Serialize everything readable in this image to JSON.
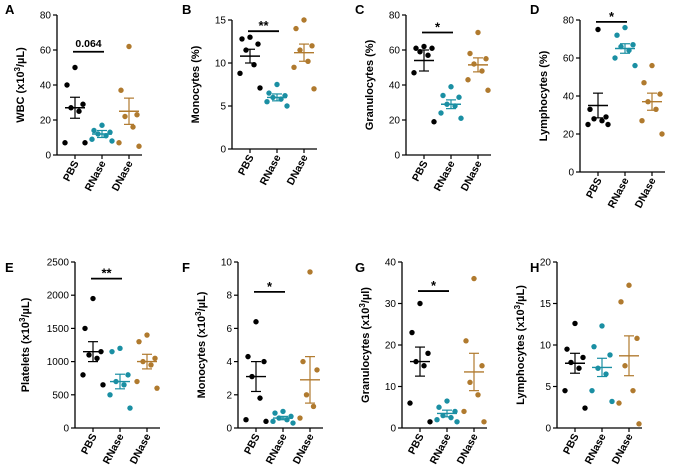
{
  "colors": {
    "PBS": "#000000",
    "RNase": "#1a8fa3",
    "DNase": "#b07a2e",
    "axis": "#000000"
  },
  "chart_data": [
    {
      "panel": "A",
      "type": "scatter",
      "ylabel_main": "WBC (x10",
      "ylabel_sup": "3",
      "ylabel_end": "/µL)",
      "categories": [
        "PBS",
        "RNase",
        "DNase"
      ],
      "ylim": [
        0,
        80
      ],
      "yticks": [
        0,
        20,
        40,
        60,
        80
      ],
      "series": [
        {
          "name": "PBS",
          "values": [
            50,
            40,
            29,
            27,
            25,
            7,
            7
          ],
          "mean": 27,
          "sem": 6
        },
        {
          "name": "RNase",
          "values": [
            17,
            14,
            13,
            12,
            11,
            9,
            8
          ],
          "mean": 12,
          "sem": 2
        },
        {
          "name": "DNase",
          "values": [
            62,
            37,
            23,
            22,
            16,
            7,
            5
          ],
          "mean": 25,
          "sem": 7.5
        }
      ],
      "significance": {
        "text": "0.064",
        "from": 0,
        "to": 1,
        "y": 59
      }
    },
    {
      "panel": "B",
      "type": "scatter",
      "ylabel_main": "Monocytes (%)",
      "categories": [
        "PBS",
        "RNase",
        "DNase"
      ],
      "ylim": [
        0,
        15
      ],
      "yticks": [
        0,
        5,
        10,
        15
      ],
      "series": [
        {
          "name": "PBS",
          "values": [
            13,
            12.8,
            12.2,
            11.5,
            9.8,
            8.8,
            7.1
          ],
          "mean": 10.8,
          "sem": 0.8
        },
        {
          "name": "RNase",
          "values": [
            7.5,
            6.5,
            6.2,
            6.0,
            5.8,
            5.5,
            5.0
          ],
          "mean": 6.0,
          "sem": 0.4
        },
        {
          "name": "DNase",
          "values": [
            15,
            14,
            12,
            11.5,
            10.2,
            9.5,
            7
          ],
          "mean": 11.2,
          "sem": 1.0
        }
      ],
      "significance": {
        "text": "**",
        "from": 0,
        "to": 1,
        "y": 13.7
      }
    },
    {
      "panel": "C",
      "type": "scatter",
      "ylabel_main": "Granulocytes (%)",
      "categories": [
        "PBS",
        "RNase",
        "DNase"
      ],
      "ylim": [
        0,
        80
      ],
      "yticks": [
        0,
        20,
        40,
        60,
        80
      ],
      "series": [
        {
          "name": "PBS",
          "values": [
            62,
            61,
            61,
            59,
            57,
            47,
            19
          ],
          "mean": 54,
          "sem": 6
        },
        {
          "name": "RNase",
          "values": [
            39,
            34,
            33,
            29,
            28,
            24,
            21
          ],
          "mean": 29,
          "sem": 2.5
        },
        {
          "name": "DNase",
          "values": [
            70,
            58,
            55,
            52,
            48,
            43,
            37
          ],
          "mean": 51.5,
          "sem": 4
        }
      ],
      "significance": {
        "text": "*",
        "from": 0,
        "to": 1,
        "y": 70
      }
    },
    {
      "panel": "D",
      "type": "scatter",
      "ylabel_main": "Lymphocytes (%)",
      "categories": [
        "PBS",
        "RNase",
        "DNase"
      ],
      "ylim": [
        0,
        80
      ],
      "yticks": [
        0,
        20,
        40,
        60,
        80
      ],
      "series": [
        {
          "name": "PBS",
          "values": [
            75,
            33,
            29,
            28,
            27,
            25,
            25
          ],
          "mean": 35,
          "sem": 6.5
        },
        {
          "name": "RNase",
          "values": [
            76,
            72,
            67,
            66,
            64,
            60,
            56
          ],
          "mean": 65,
          "sem": 2.5
        },
        {
          "name": "DNase",
          "values": [
            56,
            47,
            41,
            37,
            33,
            27,
            20
          ],
          "mean": 37,
          "sem": 4.5
        }
      ],
      "significance": {
        "text": "*",
        "from": 0,
        "to": 1,
        "y": 79
      }
    },
    {
      "panel": "E",
      "type": "scatter",
      "ylabel_main": "Platelets (x10",
      "ylabel_sup": "3",
      "ylabel_end": "/µL)",
      "categories": [
        "PBS",
        "RNase",
        "DNase"
      ],
      "ylim": [
        0,
        2500
      ],
      "yticks": [
        0,
        500,
        1000,
        1500,
        2000,
        2500
      ],
      "series": [
        {
          "name": "PBS",
          "values": [
            1950,
            1500,
            1150,
            1100,
            1050,
            800,
            650
          ],
          "mean": 1150,
          "sem": 150
        },
        {
          "name": "RNase",
          "values": [
            1200,
            1150,
            800,
            700,
            650,
            500,
            300
          ],
          "mean": 700,
          "sem": 110
        },
        {
          "name": "DNase",
          "values": [
            1400,
            1300,
            1050,
            1000,
            950,
            700,
            600
          ],
          "mean": 1000,
          "sem": 110
        }
      ],
      "significance": {
        "text": "**",
        "from": 0,
        "to": 1,
        "y": 2250
      }
    },
    {
      "panel": "F",
      "type": "scatter",
      "ylabel_main": "Monocytes (x10",
      "ylabel_sup": "3",
      "ylabel_end": "/µL)",
      "categories": [
        "PBS",
        "RNase",
        "DNase"
      ],
      "ylim": [
        0,
        10
      ],
      "yticks": [
        0,
        2,
        4,
        6,
        8,
        10
      ],
      "series": [
        {
          "name": "PBS",
          "values": [
            6.4,
            4.3,
            4.0,
            3.1,
            1.8,
            0.5,
            0.4
          ],
          "mean": 3.1,
          "sem": 0.9
        },
        {
          "name": "RNase",
          "values": [
            1.0,
            0.9,
            0.7,
            0.6,
            0.5,
            0.4,
            0.3
          ],
          "mean": 0.6,
          "sem": 0.1
        },
        {
          "name": "DNase",
          "values": [
            9.4,
            4.0,
            3.5,
            2.0,
            1.3,
            0.6
          ],
          "mean": 2.9,
          "sem": 1.4
        }
      ],
      "significance": {
        "text": "*",
        "from": 0,
        "to": 1,
        "y": 8.2
      }
    },
    {
      "panel": "G",
      "type": "scatter",
      "ylabel_main": "Granulocytes (x10",
      "ylabel_sup": "3",
      "ylabel_end": "/µl)",
      "categories": [
        "PBS",
        "RNase",
        "DNase"
      ],
      "ylim": [
        0,
        40
      ],
      "yticks": [
        0,
        10,
        20,
        30,
        40
      ],
      "series": [
        {
          "name": "PBS",
          "values": [
            30,
            23,
            18,
            16,
            15,
            6,
            1.5
          ],
          "mean": 16,
          "sem": 3.5
        },
        {
          "name": "RNase",
          "values": [
            6.5,
            5,
            4,
            3,
            2.5,
            2,
            1.5
          ],
          "mean": 3.5,
          "sem": 0.8
        },
        {
          "name": "DNase",
          "values": [
            36,
            21,
            15,
            11,
            8,
            4,
            1.5
          ],
          "mean": 13.5,
          "sem": 4.5
        }
      ],
      "significance": {
        "text": "*",
        "from": 0,
        "to": 1,
        "y": 33
      }
    },
    {
      "panel": "H",
      "type": "scatter",
      "ylabel_main": "Lymphocytes (x10",
      "ylabel_sup": "3",
      "ylabel_end": "/µL)",
      "categories": [
        "PBS",
        "RNase",
        "DNase"
      ],
      "ylim": [
        0,
        20
      ],
      "yticks": [
        0,
        5,
        10,
        15,
        20
      ],
      "series": [
        {
          "name": "PBS",
          "values": [
            12.6,
            9.5,
            8.5,
            7.9,
            7.2,
            4.5,
            2.4
          ],
          "mean": 7.8,
          "sem": 1.2
        },
        {
          "name": "RNase",
          "values": [
            12.3,
            9.8,
            8.8,
            7.2,
            6.5,
            4.5,
            3.2
          ],
          "mean": 7.3,
          "sem": 1.1
        },
        {
          "name": "DNase",
          "values": [
            17.2,
            15.2,
            10.8,
            7.5,
            4.5,
            3.0,
            0.5
          ],
          "mean": 8.7,
          "sem": 2.4
        }
      ]
    }
  ]
}
